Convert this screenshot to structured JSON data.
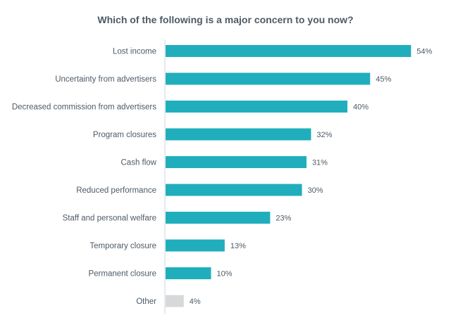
{
  "chart_data": {
    "type": "bar",
    "orientation": "horizontal",
    "title": "Which of the following is a major concern to you now?",
    "categories": [
      "Lost income",
      "Uncertainty from advertisers",
      "Decreased commission from advertisers",
      "Program closures",
      "Cash flow",
      "Reduced performance",
      "Staff and personal welfare",
      "Temporary closure",
      "Permanent closure",
      "Other"
    ],
    "values": [
      54,
      45,
      40,
      32,
      31,
      30,
      23,
      13,
      10,
      4
    ],
    "value_labels": [
      "54%",
      "45%",
      "40%",
      "32%",
      "31%",
      "30%",
      "23%",
      "13%",
      "10%",
      "4%"
    ],
    "unit": "%",
    "xlim": [
      0,
      60
    ],
    "grid": false,
    "legend": "none",
    "bar_colors": [
      "#20aebc",
      "#20aebc",
      "#20aebc",
      "#20aebc",
      "#20aebc",
      "#20aebc",
      "#20aebc",
      "#20aebc",
      "#20aebc",
      "#d6d8da"
    ],
    "axis_color": "#cfd4d8",
    "label_color": "#4d5a66"
  }
}
